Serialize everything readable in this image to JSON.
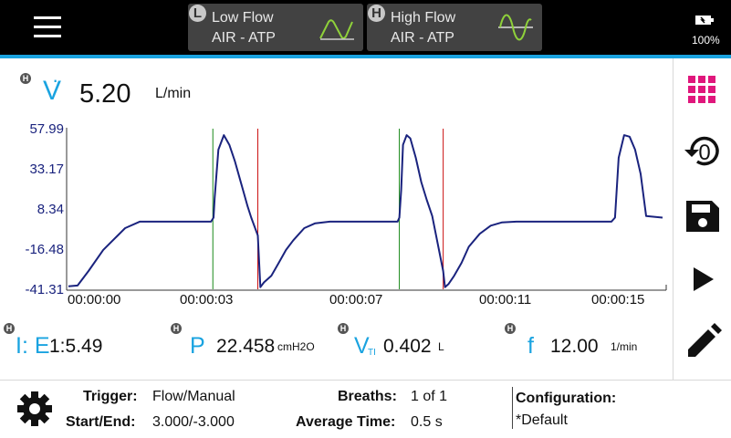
{
  "modes": [
    {
      "badge": "L",
      "title": "Low Flow",
      "subtitle": "AIR - ATP",
      "icon": "low-flow-wave-icon"
    },
    {
      "badge": "H",
      "title": "High Flow",
      "subtitle": "AIR - ATP",
      "icon": "high-flow-wave-icon"
    }
  ],
  "battery": {
    "level": "100%"
  },
  "main": {
    "history_badge": "H",
    "symbol": "V",
    "value": "5.20",
    "unit": "L/min"
  },
  "chart_data": {
    "type": "line",
    "series": [
      {
        "name": "",
        "color": "#1a237e"
      }
    ],
    "y_ticks": [
      "57.99",
      "33.17",
      "8.34",
      "-16.48",
      "-41.31"
    ],
    "x_ticks": [
      "00:00:00",
      "00:00:03",
      "00:00:07",
      "00:00:11",
      "00:00:15"
    ],
    "ylim": [
      -41.31,
      57.99
    ],
    "x_unit": "seconds",
    "xlim": [
      0,
      16.4
    ],
    "markers": [
      {
        "type": "inspiration-start",
        "x": 4.0,
        "color": "#1a8a1a"
      },
      {
        "type": "expiration-start",
        "x": 5.23,
        "color": "#cc1111"
      },
      {
        "type": "inspiration-start",
        "x": 9.1,
        "color": "#1a8a1a"
      },
      {
        "type": "expiration-start",
        "x": 10.3,
        "color": "#cc1111"
      }
    ],
    "x": [
      0.05,
      0.3,
      0.6,
      1.0,
      1.4,
      1.6,
      2.0,
      3.0,
      3.95,
      4.02,
      4.05,
      4.15,
      4.3,
      4.45,
      4.6,
      4.75,
      4.85,
      4.95,
      5.05,
      5.23,
      5.3,
      5.4,
      5.6,
      5.8,
      6.0,
      6.2,
      6.5,
      6.8,
      7.2,
      8.0,
      9.05,
      9.1,
      9.15,
      9.2,
      9.3,
      9.4,
      9.55,
      9.7,
      9.85,
      10.0,
      10.3,
      10.35,
      10.45,
      10.6,
      10.8,
      11.0,
      11.3,
      11.6,
      11.9,
      12.3,
      13.0,
      14.0,
      14.9,
      15.0,
      15.1,
      15.25,
      15.4,
      15.55,
      15.7,
      15.85,
      16.3
    ],
    "y": [
      -39.5,
      -39.0,
      -30.0,
      -17.0,
      -8.0,
      -3.5,
      0.5,
      0.5,
      0.5,
      3.0,
      15.0,
      45.0,
      54.0,
      48.0,
      38.0,
      26.0,
      18.0,
      10.0,
      3.0,
      -8.0,
      -40.0,
      -37.0,
      -33.0,
      -25.0,
      -17.0,
      -11.0,
      -3.5,
      -0.5,
      0.5,
      0.5,
      0.5,
      3.0,
      20.0,
      48.0,
      54.0,
      52.0,
      40.0,
      25.0,
      14.0,
      4.0,
      -30.0,
      -40.0,
      -38.0,
      -33.0,
      -25.0,
      -15.0,
      -7.0,
      -2.0,
      0.0,
      0.5,
      0.5,
      0.5,
      0.5,
      3.0,
      40.0,
      54.0,
      53.0,
      45.0,
      30.0,
      4.0,
      3.0
    ]
  },
  "readouts": [
    {
      "badge": "H",
      "name": "I: E",
      "value": "1:5.49",
      "unit": ""
    },
    {
      "badge": "H",
      "name": "P",
      "value": "22.458",
      "unit": "cmH2O"
    },
    {
      "badge": "H",
      "name": "V",
      "subscript": "TI",
      "value": "0.402",
      "unit": "L"
    },
    {
      "badge": "H",
      "name": "f",
      "value": "12.00",
      "unit": "1/min"
    }
  ],
  "footer": {
    "trigger_label": "Trigger:",
    "trigger_value": "Flow/Manual",
    "startend_label": "Start/End:",
    "startend_value": "3.000/-3.000",
    "breaths_label": "Breaths:",
    "breaths_value": "1 of 1",
    "avgtime_label": "Average Time:",
    "avgtime_value": "0.5 s",
    "config_label": "Configuration:",
    "config_value": "*Default"
  },
  "colors": {
    "accent": "#1aa3e0",
    "magenta": "#e0177c",
    "trace": "#1a237e",
    "topbar": "#000000",
    "tab": "#424242"
  }
}
